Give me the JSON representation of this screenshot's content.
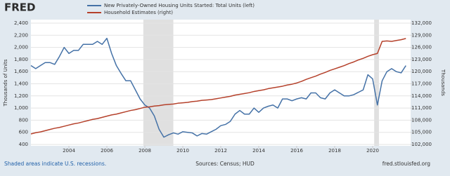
{
  "header": {
    "logo": "FRED"
  },
  "chart_data": {
    "type": "line",
    "x": [
      2002,
      2002.25,
      2002.5,
      2002.75,
      2003,
      2003.25,
      2003.5,
      2003.75,
      2004,
      2004.25,
      2004.5,
      2004.75,
      2005,
      2005.25,
      2005.5,
      2005.75,
      2006,
      2006.25,
      2006.5,
      2006.75,
      2007,
      2007.25,
      2007.5,
      2007.75,
      2008,
      2008.25,
      2008.5,
      2008.75,
      2009,
      2009.25,
      2009.5,
      2009.75,
      2010,
      2010.25,
      2010.5,
      2010.75,
      2011,
      2011.25,
      2011.5,
      2011.75,
      2012,
      2012.25,
      2012.5,
      2012.75,
      2013,
      2013.25,
      2013.5,
      2013.75,
      2014,
      2014.25,
      2014.5,
      2014.75,
      2015,
      2015.25,
      2015.5,
      2015.75,
      2016,
      2016.25,
      2016.5,
      2016.75,
      2017,
      2017.25,
      2017.5,
      2017.75,
      2018,
      2018.25,
      2018.5,
      2018.75,
      2019,
      2019.25,
      2019.5,
      2019.75,
      2020,
      2020.25,
      2020.5,
      2020.75,
      2021,
      2021.25,
      2021.5,
      2021.75
    ],
    "series": [
      {
        "name": "New Privately-Owned Housing Units Started: Total Units (left)",
        "color": "#4572a7",
        "values": [
          1700,
          1650,
          1700,
          1750,
          1750,
          1720,
          1850,
          2000,
          1900,
          1950,
          1950,
          2050,
          2050,
          2050,
          2100,
          2050,
          2150,
          1900,
          1700,
          1570,
          1450,
          1450,
          1300,
          1150,
          1050,
          1000,
          870,
          650,
          520,
          560,
          590,
          570,
          610,
          600,
          590,
          540,
          580,
          570,
          610,
          650,
          710,
          730,
          780,
          900,
          960,
          900,
          900,
          1000,
          930,
          1000,
          1030,
          1050,
          1000,
          1150,
          1150,
          1120,
          1150,
          1170,
          1150,
          1250,
          1250,
          1170,
          1150,
          1250,
          1300,
          1250,
          1200,
          1200,
          1220,
          1260,
          1300,
          1550,
          1480,
          1050,
          1450,
          1600,
          1650,
          1600,
          1580,
          1700
        ]
      },
      {
        "name": "Household Estimates (right)",
        "color": "#b5412b",
        "axis": "y2",
        "values": [
          104600,
          104900,
          105100,
          105400,
          105700,
          106000,
          106200,
          106500,
          106800,
          107100,
          107300,
          107600,
          107900,
          108200,
          108400,
          108700,
          109000,
          109300,
          109500,
          109800,
          110100,
          110400,
          110600,
          110900,
          111200,
          111300,
          111500,
          111600,
          111800,
          111900,
          112000,
          112200,
          112300,
          112400,
          112600,
          112700,
          112900,
          113000,
          113100,
          113300,
          113500,
          113700,
          113900,
          114200,
          114400,
          114600,
          114800,
          115100,
          115300,
          115500,
          115800,
          116000,
          116200,
          116400,
          116700,
          116900,
          117200,
          117600,
          118100,
          118500,
          118900,
          119400,
          119800,
          120300,
          120700,
          121100,
          121500,
          122000,
          122400,
          122900,
          123300,
          123800,
          124200,
          124500,
          127500,
          127600,
          127500,
          127700,
          127900,
          128200
        ]
      }
    ],
    "recessions": [
      [
        2007.92,
        2009.5
      ],
      [
        2020.08,
        2020.33
      ]
    ],
    "xlim": [
      2002,
      2022
    ],
    "xticks": [
      2004,
      2006,
      2008,
      2010,
      2012,
      2014,
      2016,
      2018,
      2020
    ],
    "ylabel": "Thousands of Units",
    "y2label": "Thousands",
    "ylim": [
      400,
      2400
    ],
    "yticks": [
      400,
      600,
      800,
      {
        "value": 1000,
        "label": "1,000"
      },
      {
        "value": 1200,
        "label": "1,200"
      },
      {
        "value": 1400,
        "label": "1,400"
      },
      {
        "value": 1600,
        "label": "1,600"
      },
      {
        "value": 1800,
        "label": "1,800"
      },
      {
        "value": 2000,
        "label": "2,000"
      },
      {
        "value": 2200,
        "label": "2,200"
      },
      {
        "value": 2400,
        "label": "2,400"
      }
    ],
    "y2lim": [
      102000,
      132000
    ],
    "y2ticks": [
      {
        "value": 102000,
        "label": "102,000"
      },
      {
        "value": 105000,
        "label": "105,000"
      },
      {
        "value": 108000,
        "label": "108,000"
      },
      {
        "value": 111000,
        "label": "111,000"
      },
      {
        "value": 114000,
        "label": "114,000"
      },
      {
        "value": 117000,
        "label": "117,000"
      },
      {
        "value": 120000,
        "label": "120,000"
      },
      {
        "value": 123000,
        "label": "123,000"
      },
      {
        "value": 126000,
        "label": "126,000"
      },
      {
        "value": 129000,
        "label": "129,000"
      },
      {
        "value": 132000,
        "label": "132,000"
      }
    ],
    "grid": true
  },
  "footer": {
    "note": "Shaded areas indicate U.S. recessions.",
    "source": "Sources: Census; HUD",
    "url": "fred.stlouisfed.org"
  }
}
